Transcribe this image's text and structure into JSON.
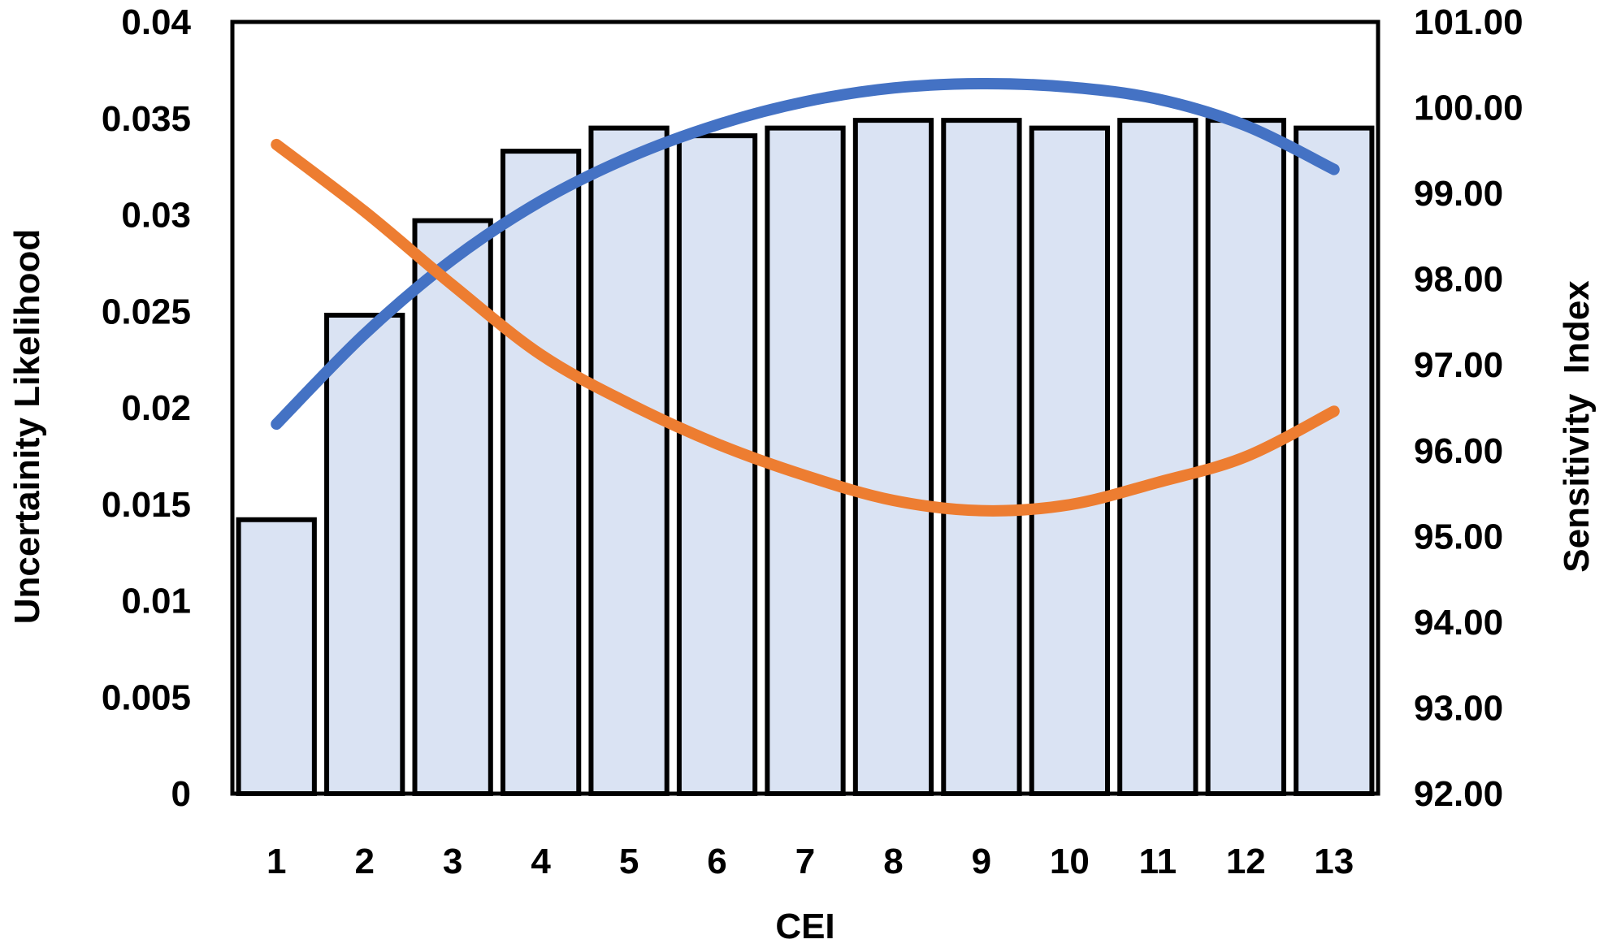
{
  "chart_data": {
    "type": "bar",
    "xlabel": "CEI",
    "ylabel": "Uncertainity Likelihood",
    "y2label": "Sensitivity  Index",
    "categories": [
      "1",
      "2",
      "3",
      "4",
      "5",
      "6",
      "7",
      "8",
      "9",
      "10",
      "11",
      "12",
      "13"
    ],
    "ylim": [
      0,
      0.04
    ],
    "y2lim": [
      92,
      101
    ],
    "y_ticks": [
      "0",
      "0.005",
      "0.01",
      "0.015",
      "0.02",
      "0.025",
      "0.03",
      "0.035",
      "0.04"
    ],
    "y2_ticks": [
      "92.00",
      "93.00",
      "94.00",
      "95.00",
      "96.00",
      "97.00",
      "98.00",
      "99.00",
      "100.00",
      "101.00"
    ],
    "bar_color": "#DAE3F3",
    "series": [
      {
        "type": "bar",
        "axis": "left",
        "values": [
          0.0142,
          0.0248,
          0.0297,
          0.0333,
          0.0345,
          0.0341,
          0.0345,
          0.0349,
          0.0349,
          0.0345,
          0.0349,
          0.0349,
          0.0345
        ]
      },
      {
        "type": "line",
        "axis": "right",
        "color": "#4472C4",
        "values": [
          96.31,
          97.36,
          98.23,
          98.91,
          99.42,
          99.8,
          100.07,
          100.23,
          100.28,
          100.24,
          100.1,
          99.79,
          99.28
        ]
      },
      {
        "type": "line",
        "axis": "right",
        "color": "#ED7D31",
        "values": [
          99.57,
          98.79,
          97.93,
          97.12,
          96.55,
          96.08,
          95.71,
          95.42,
          95.3,
          95.37,
          95.63,
          95.93,
          96.46
        ]
      }
    ],
    "grid": false,
    "legend": "none"
  }
}
